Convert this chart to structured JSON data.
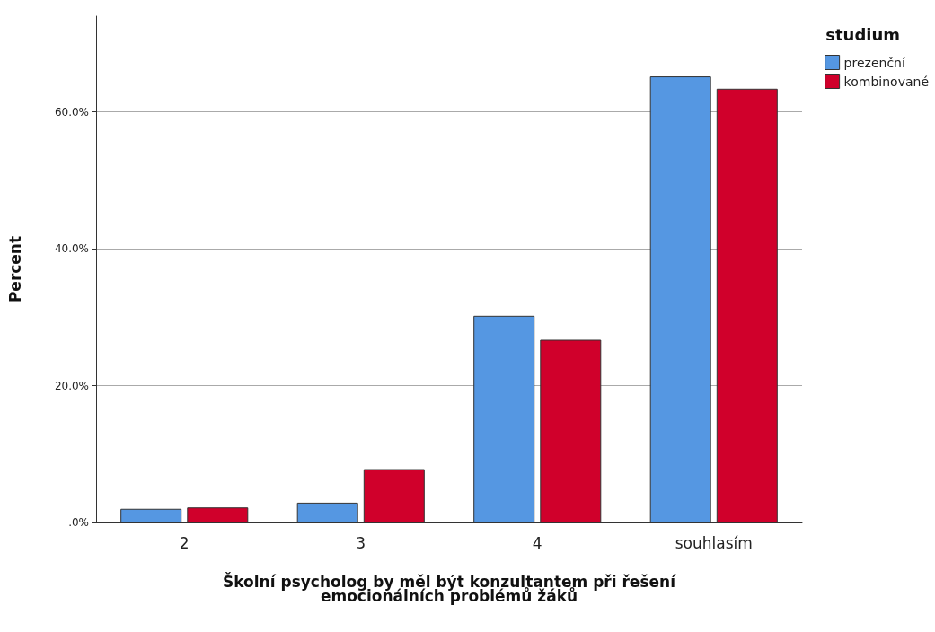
{
  "chart_data": {
    "type": "bar",
    "xlabel": "Školní psycholog by měl být konzultantem při řešení\nemocionálních problémů žáků",
    "ylabel": "Percent",
    "legend_title": "studium",
    "categories": [
      "2",
      "3",
      "4",
      "souhlasím"
    ],
    "series": [
      {
        "name": "prezenční",
        "color": "#5597e2",
        "values": [
          2.0,
          2.9,
          30.2,
          65.2
        ]
      },
      {
        "name": "kombinované",
        "color": "#d0002b",
        "values": [
          2.2,
          7.8,
          26.7,
          63.4
        ]
      }
    ],
    "ylim": [
      0,
      74
    ],
    "yticks": [
      {
        "value": 0,
        "label": ".0%"
      },
      {
        "value": 20,
        "label": "20.0%"
      },
      {
        "value": 40,
        "label": "40.0%"
      },
      {
        "value": 60,
        "label": "60.0%"
      }
    ],
    "grid": "y",
    "legend": "top right"
  }
}
